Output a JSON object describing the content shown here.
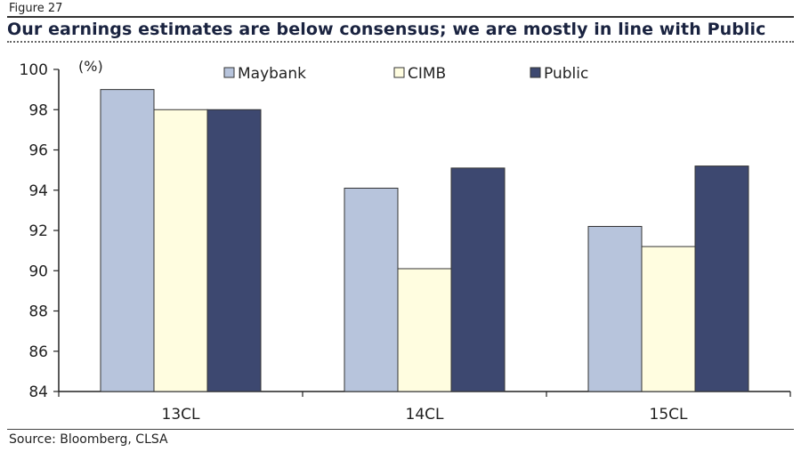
{
  "figure_label": "Figure 27",
  "source": "Source: Bloomberg, CLSA",
  "chart_data": {
    "type": "bar",
    "title": "Our earnings estimates are below consensus; we are mostly in line with Public",
    "unit_label": "(%)",
    "categories": [
      "13CL",
      "14CL",
      "15CL"
    ],
    "series": [
      {
        "name": "Maybank",
        "values": [
          99.0,
          94.1,
          92.2
        ],
        "color": "#b7c4dc"
      },
      {
        "name": "CIMB",
        "values": [
          98.0,
          90.1,
          91.2
        ],
        "color": "#fffde0"
      },
      {
        "name": "Public",
        "values": [
          98.0,
          95.1,
          95.2
        ],
        "color": "#3d4870"
      }
    ],
    "ylim": [
      84,
      100
    ],
    "yticks": [
      84,
      86,
      88,
      90,
      92,
      94,
      96,
      98,
      100
    ],
    "grid": false,
    "legend": "top"
  }
}
